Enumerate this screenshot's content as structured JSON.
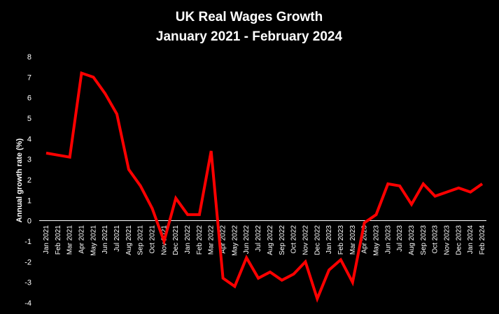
{
  "chart_data": {
    "type": "line",
    "title": "UK Real Wages Growth",
    "subtitle": "January 2021 - February 2024",
    "xlabel": "",
    "ylabel": "Annual growth rate (%)",
    "ylim": [
      -4,
      8
    ],
    "yticks": [
      "-4",
      "-3",
      "-2",
      "-1",
      "0",
      "1",
      "2",
      "3",
      "4",
      "5",
      "6",
      "7",
      "8"
    ],
    "grid": false,
    "legend": "none",
    "categories": [
      "Jan 2021",
      "Feb 2021",
      "Mar 2021",
      "Apr 2021",
      "May 2021",
      "Jun 2021",
      "Jul 2021",
      "Aug 2021",
      "Sep 2021",
      "Oct 2021",
      "Nov 2021",
      "Dec 2021",
      "Jan 2022",
      "Feb 2022",
      "Mar 2022",
      "Apr 2022",
      "May 2022",
      "Jun 2022",
      "Jul 2022",
      "Aug 2022",
      "Sep 2022",
      "Oct 2022",
      "Nov 2022",
      "Dec 2022",
      "Jan 2023",
      "Feb 2023",
      "Mar 2023",
      "Apr 2023",
      "May 2023",
      "Jun 2023",
      "Jul 2023",
      "Aug 2023",
      "Sep 2023",
      "Oct 2023",
      "Nov 2023",
      "Dec 2023",
      "Jan 2024",
      "Feb 2024"
    ],
    "series": [
      {
        "color": "#ff0000",
        "values": [
          3.3,
          3.2,
          3.1,
          7.2,
          7.0,
          6.2,
          5.2,
          2.5,
          1.7,
          0.6,
          -1.0,
          1.1,
          0.3,
          0.3,
          3.4,
          -2.8,
          -3.2,
          -1.8,
          -2.8,
          -2.5,
          -2.9,
          -2.6,
          -2.0,
          -3.8,
          -2.4,
          -1.9,
          -3.0,
          -0.1,
          0.3,
          1.8,
          1.7,
          0.8,
          1.8,
          1.2,
          1.4,
          1.6,
          1.4,
          1.8
        ]
      }
    ]
  }
}
